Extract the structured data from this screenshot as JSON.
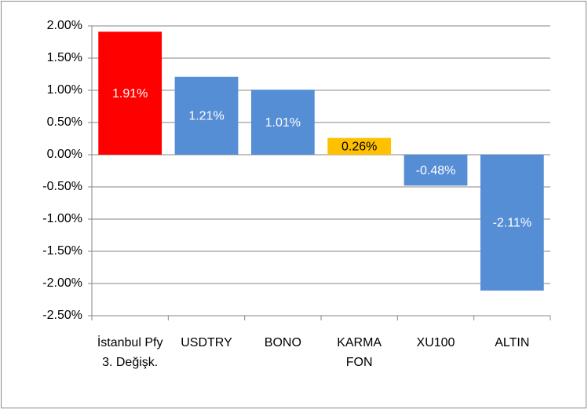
{
  "chart_data": {
    "type": "bar",
    "categories": [
      "İstanbul Pfy 3. Değişk.",
      "USDTRY",
      "BONO",
      "KARMA FON",
      "XU100",
      "ALTIN"
    ],
    "values": [
      1.91,
      1.21,
      1.01,
      0.26,
      -0.48,
      -2.11
    ],
    "value_labels": [
      "1.91%",
      "1.21%",
      "1.01%",
      "0.26%",
      "-0.48%",
      "-2.11%"
    ],
    "colors": [
      "#ff0000",
      "#558ed5",
      "#558ed5",
      "#ffc000",
      "#558ed5",
      "#558ed5"
    ],
    "label_colors": [
      "#ffffff",
      "#ffffff",
      "#ffffff",
      "#000000",
      "#ffffff",
      "#ffffff"
    ],
    "ylim": [
      -2.5,
      2.0
    ],
    "yticks": [
      {
        "value": -2.5,
        "label": "-2.50%"
      },
      {
        "value": -2.0,
        "label": "-2.00%"
      },
      {
        "value": -1.5,
        "label": "-1.50%"
      },
      {
        "value": -1.0,
        "label": "-1.00%"
      },
      {
        "value": -0.5,
        "label": "-0.50%"
      },
      {
        "value": 0,
        "label": "0.00%"
      },
      {
        "value": 0.5,
        "label": "0.50%"
      },
      {
        "value": 1.0,
        "label": "1.00%"
      },
      {
        "value": 1.5,
        "label": "1.50%"
      },
      {
        "value": 2.0,
        "label": "2.00%"
      }
    ],
    "grid": true
  }
}
